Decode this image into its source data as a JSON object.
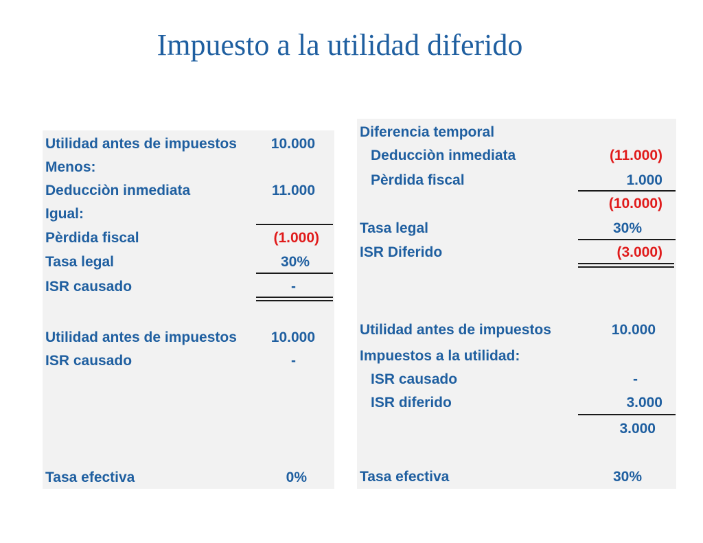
{
  "title": "Impuesto a la utilidad diferido",
  "left": {
    "rows": [
      {
        "label": "Utilidad antes de impuestos",
        "value": "10.000"
      },
      {
        "label": "Menos:",
        "value": ""
      },
      {
        "label": "Deducciòn inmediata",
        "value": "11.000"
      },
      {
        "label": "Igual:",
        "value": ""
      },
      {
        "label": "Pèrdida fiscal",
        "value": "(1.000)"
      },
      {
        "label": "Tasa legal",
        "value": "30%"
      },
      {
        "label": "ISR causado",
        "value": "-"
      },
      {
        "label": "Utilidad antes de impuestos",
        "value": "10.000"
      },
      {
        "label": "ISR causado",
        "value": "-"
      },
      {
        "label": "Tasa efectiva",
        "value": "0%"
      }
    ]
  },
  "right": {
    "rows": [
      {
        "label": "Diferencia temporal",
        "value": ""
      },
      {
        "label": "Deducciòn inmediata",
        "value": "(11.000)"
      },
      {
        "label": "Pèrdida fiscal",
        "value": "1.000"
      },
      {
        "label": "",
        "value": "(10.000)"
      },
      {
        "label": "Tasa legal",
        "value": "30%"
      },
      {
        "label": "ISR Diferido",
        "value": "(3.000)"
      },
      {
        "label": "Utilidad antes de impuestos",
        "value": "10.000"
      },
      {
        "label": "Impuestos a la utilidad:",
        "value": ""
      },
      {
        "label": "ISR causado",
        "value": "-"
      },
      {
        "label": "ISR diferido",
        "value": "3.000"
      },
      {
        "label": "",
        "value": "3.000"
      },
      {
        "label": "Tasa efectiva",
        "value": "30%"
      }
    ]
  },
  "colors": {
    "text_blue": "#1f5fa0",
    "negative_red": "#e01b1b",
    "panel_bg": "#f2f2f2"
  }
}
